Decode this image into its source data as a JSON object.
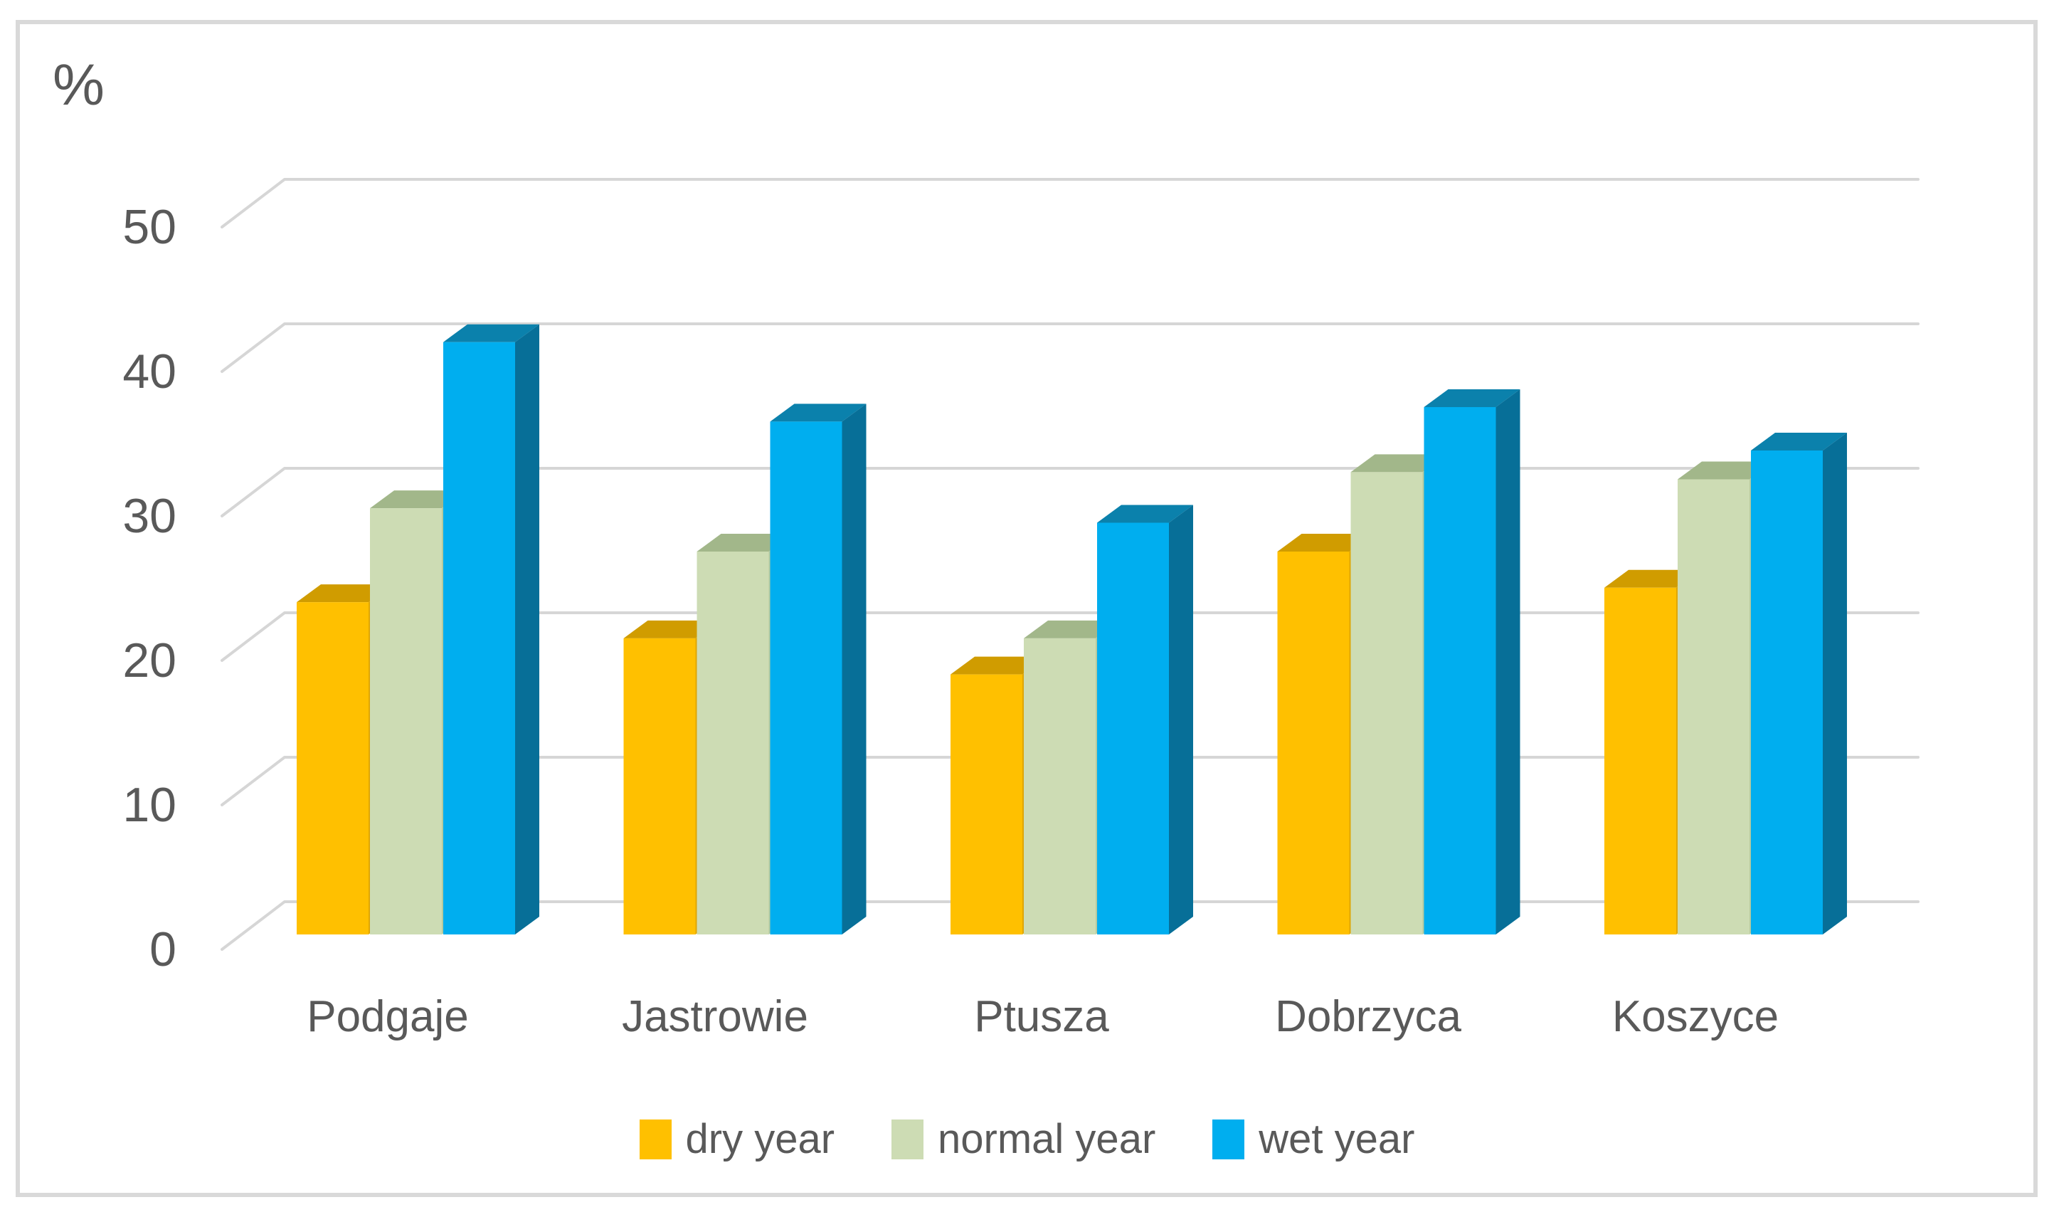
{
  "chart_data": {
    "type": "bar",
    "variant": "3d-clustered-column",
    "title": "",
    "unit_label": "%",
    "xlabel": "",
    "ylabel": "%",
    "categories": [
      "Podgaje",
      "Jastrowie",
      "Ptusza",
      "Dobrzyca",
      "Koszyce"
    ],
    "series": [
      {
        "name": "dry year",
        "color": "#FFC000",
        "color_top": "#D09C00",
        "color_side": "#DFA605",
        "values": [
          23,
          20.5,
          18,
          26.5,
          24
        ]
      },
      {
        "name": "normal year",
        "color": "#CDDCB4",
        "color_top": "#A2B78A",
        "color_side": "#B7CA9F",
        "values": [
          29.5,
          26.5,
          20.5,
          32,
          31.5
        ]
      },
      {
        "name": "wet year",
        "color": "#00AEEF",
        "color_top": "#0B81AC",
        "color_side": "#076F98",
        "values": [
          41,
          35.5,
          28.5,
          36.5,
          33.5
        ]
      }
    ],
    "ylim": [
      0,
      50
    ],
    "yticks": [
      0,
      10,
      20,
      30,
      40,
      50
    ],
    "grid": true,
    "gridline_color": "#D6D6D6",
    "frame_color": "#D9D9D9",
    "text_color": "#595959",
    "legend_position": "bottom"
  }
}
